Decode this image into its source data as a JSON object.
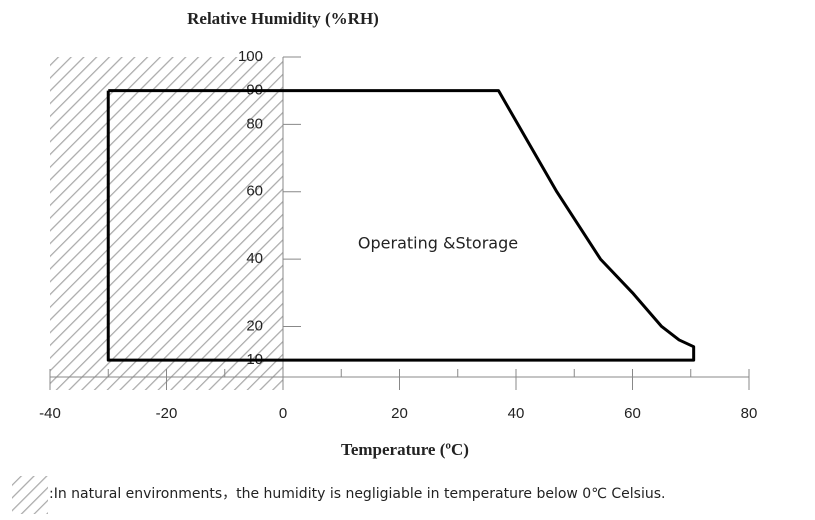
{
  "chart_data": {
    "type": "line",
    "title": "Relative Humidity (%RH)",
    "x_label": "Temperature (ºC)",
    "annotation": "Operating &Storage",
    "note": ":In natural environments，the humidity is negligiable in temperature below 0℃ Celsius.",
    "xlim": [
      -40,
      80
    ],
    "ylim": [
      5,
      100
    ],
    "xticks": [
      -40,
      -20,
      0,
      20,
      40,
      60,
      80
    ],
    "xminor_ticks": [
      -30,
      -10,
      10,
      30,
      50,
      70
    ],
    "yticks": [
      10,
      20,
      40,
      60,
      80,
      90,
      100
    ],
    "shaded_xrange": [
      -40,
      0
    ],
    "series": [
      {
        "color": "#000000",
        "x": [
          -30,
          37,
          42,
          47,
          54.5,
          60,
          65,
          68,
          70.5,
          70.5,
          -30,
          -30
        ],
        "y": [
          90,
          90,
          75,
          60,
          40,
          30,
          20,
          16,
          14,
          10,
          10,
          90
        ]
      }
    ]
  }
}
